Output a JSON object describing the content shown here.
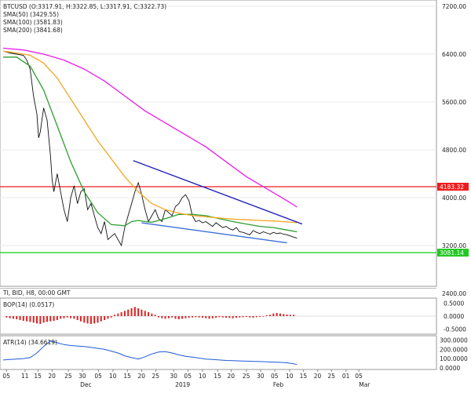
{
  "legend": {
    "ohlc": "BTCUSD (O:3317.91, H:3322.85, L:3317.91, C:3322.73)",
    "sma50": "SMA(50) (3429.55)",
    "sma100": "SMA(100) (3581.83)",
    "sma200": "SMA(200) (3841.68)"
  },
  "footer_label": "TI, BID, H8, 00:00 GMT",
  "colors": {
    "sma50": "#2e9e2e",
    "sma100": "#f5a623",
    "sma200": "#e81ee8",
    "resistance": "#ee1c1c",
    "support": "#22d622",
    "trend_upper": "#2222bb",
    "trend_lower": "#3a6fd8",
    "price": "#111111",
    "bop": "#e02020",
    "atr": "#1e5ad8",
    "label_red_bg": "#ee1c1c",
    "label_green_bg": "#22c822"
  },
  "chart_data": [
    {
      "type": "line",
      "name": "price-panel",
      "ylim": [
        2400,
        7200
      ],
      "yticks": [
        "7200.00",
        "6400.00",
        "5600.00",
        "4800.00",
        "4000.00",
        "3200.00",
        "2400.00"
      ],
      "ytick_values": [
        7200,
        6400,
        5600,
        4800,
        4000,
        3200,
        2400
      ],
      "price_labels": [
        {
          "text": "4183.32",
          "value": 4183.32,
          "color": "#ee1c1c"
        },
        {
          "text": "3081.14",
          "value": 3081.14,
          "color": "#22c822"
        }
      ],
      "xlim": [
        0,
        100
      ],
      "x_ticks": [
        {
          "label": "05",
          "x": 1
        },
        {
          "label": "11",
          "x": 6.5
        },
        {
          "label": "15",
          "x": 10.3
        },
        {
          "label": "20",
          "x": 14.5
        },
        {
          "label": "25",
          "x": 19.3
        },
        {
          "label": "30",
          "x": 23.5
        },
        {
          "label": "05",
          "x": 28.2
        },
        {
          "label": "10",
          "x": 32.5
        },
        {
          "label": "15",
          "x": 36.8
        },
        {
          "label": "20",
          "x": 41
        },
        {
          "label": "25",
          "x": 45.2
        },
        {
          "label": "30",
          "x": 50.5
        },
        {
          "label": "05",
          "x": 54.7
        },
        {
          "label": "10",
          "x": 59
        },
        {
          "label": "15",
          "x": 63.5
        },
        {
          "label": "20",
          "x": 67.5
        },
        {
          "label": "25",
          "x": 72
        },
        {
          "label": "30",
          "x": 76.2
        },
        {
          "label": "05",
          "x": 80.4
        },
        {
          "label": "10",
          "x": 84.8
        },
        {
          "label": "15",
          "x": 88.9
        },
        {
          "label": "20",
          "x": 93.1
        },
        {
          "label": "25",
          "x": 97.2
        },
        {
          "label": "01",
          "x": 101.5
        },
        {
          "label": "05",
          "x": 105.3
        }
      ],
      "month_labels": [
        {
          "label": "Dec",
          "x": 24.2
        },
        {
          "label": "2019",
          "x": 52.3
        },
        {
          "label": "Feb",
          "x": 81.3
        },
        {
          "label": "Mar",
          "x": 106.7
        }
      ],
      "series": [
        {
          "key": "price",
          "x": [
            0,
            2,
            4,
            6,
            7,
            8,
            9,
            10,
            10.5,
            11,
            12,
            13,
            14,
            14.5,
            15,
            16,
            17,
            18,
            19,
            20,
            21,
            22,
            23,
            24,
            25,
            26,
            27,
            28,
            29,
            30,
            31,
            32,
            33,
            34,
            35,
            36,
            37,
            38,
            39,
            40,
            41,
            42,
            43,
            44,
            45,
            46,
            47,
            48,
            49,
            50,
            51,
            52,
            53,
            54,
            55,
            56,
            57,
            58,
            59,
            60,
            61,
            62,
            63,
            64,
            65,
            66,
            67,
            68,
            69,
            70,
            71,
            72,
            73,
            74,
            75,
            76,
            77,
            78,
            79,
            80,
            81,
            82,
            83,
            84,
            85,
            86,
            87
          ],
          "y": [
            6450,
            6420,
            6400,
            6380,
            6300,
            6150,
            5700,
            5400,
            5000,
            5100,
            5500,
            5300,
            4700,
            4300,
            4100,
            4400,
            4100,
            3800,
            3600,
            4000,
            4200,
            3900,
            4100,
            4150,
            3800,
            3900,
            3700,
            3500,
            3400,
            3600,
            3300,
            3350,
            3400,
            3300,
            3200,
            3500,
            3700,
            3900,
            4100,
            4250,
            4050,
            3800,
            3600,
            3700,
            3800,
            3650,
            3600,
            3800,
            3750,
            3700,
            3850,
            3900,
            4000,
            4050,
            3950,
            3700,
            3600,
            3620,
            3580,
            3600,
            3560,
            3520,
            3580,
            3540,
            3500,
            3520,
            3480,
            3460,
            3500,
            3430,
            3420,
            3400,
            3380,
            3450,
            3420,
            3400,
            3430,
            3410,
            3390,
            3420,
            3400,
            3410,
            3390,
            3380,
            3360,
            3340,
            3323
          ]
        },
        {
          "key": "sma50",
          "x": [
            0,
            4,
            8,
            12,
            16,
            20,
            24,
            28,
            32,
            36,
            38,
            40,
            42,
            44,
            48,
            52,
            56,
            60,
            64,
            68,
            72,
            76,
            80,
            84,
            87
          ],
          "y": [
            6350,
            6350,
            6200,
            5800,
            5200,
            4600,
            4100,
            3750,
            3550,
            3530,
            3600,
            3620,
            3600,
            3590,
            3650,
            3720,
            3720,
            3700,
            3650,
            3600,
            3560,
            3520,
            3500,
            3460,
            3430
          ]
        },
        {
          "key": "sma100",
          "x": [
            0,
            4,
            8,
            12,
            16,
            20,
            24,
            28,
            32,
            36,
            40,
            44,
            48,
            52,
            56,
            60,
            64,
            68,
            72,
            76,
            80,
            84,
            87
          ],
          "y": [
            6450,
            6420,
            6380,
            6250,
            6000,
            5650,
            5300,
            4950,
            4650,
            4350,
            4100,
            3900,
            3800,
            3740,
            3700,
            3680,
            3660,
            3640,
            3630,
            3620,
            3610,
            3595,
            3582
          ]
        },
        {
          "key": "sma200",
          "x": [
            0,
            6,
            12,
            18,
            24,
            30,
            36,
            42,
            48,
            54,
            60,
            66,
            72,
            78,
            84,
            87
          ],
          "y": [
            6500,
            6470,
            6400,
            6300,
            6150,
            5950,
            5700,
            5450,
            5250,
            5050,
            4850,
            4600,
            4350,
            4150,
            3950,
            3842
          ]
        }
      ],
      "horizontal_lines": [
        {
          "key": "resistance",
          "value": 4183.32
        },
        {
          "key": "support",
          "value": 3081.14
        }
      ],
      "trendlines": [
        {
          "key": "trend_upper",
          "x": [
            38.5,
            88.5
          ],
          "y": [
            4620,
            3560
          ]
        },
        {
          "key": "trend_lower",
          "x": [
            41,
            84
          ],
          "y": [
            3580,
            3245
          ]
        }
      ]
    },
    {
      "type": "bar",
      "name": "bop-panel",
      "title": "BOP(14) (0.0517)",
      "ylim": [
        -0.6,
        0.6
      ],
      "yticks": [
        "0.5000",
        "0.0000",
        "-0.5000"
      ],
      "ytick_values": [
        0.5,
        0.0,
        -0.5
      ],
      "x": [
        1,
        2,
        3,
        4,
        5,
        6,
        7,
        8,
        9,
        10,
        11,
        12,
        13,
        14,
        15,
        16,
        17,
        18,
        19,
        20,
        21,
        22,
        23,
        24,
        25,
        26,
        27,
        28,
        29,
        30,
        31,
        32,
        33,
        34,
        35,
        36,
        37,
        38,
        39,
        40,
        41,
        42,
        43,
        44,
        45,
        46,
        47,
        48,
        49,
        50,
        51,
        52,
        53,
        54,
        55,
        56,
        57,
        58,
        59,
        60,
        61,
        62,
        63,
        64,
        65,
        66,
        67,
        68,
        69,
        70,
        71,
        72,
        73,
        74,
        75,
        76,
        77,
        78,
        79,
        80,
        81,
        82,
        83,
        84,
        85,
        86
      ],
      "values": [
        -0.05,
        -0.08,
        -0.1,
        -0.12,
        -0.15,
        -0.18,
        -0.2,
        -0.22,
        -0.25,
        -0.28,
        -0.3,
        -0.25,
        -0.22,
        -0.2,
        -0.18,
        -0.15,
        -0.1,
        -0.08,
        -0.05,
        -0.08,
        -0.1,
        -0.15,
        -0.2,
        -0.25,
        -0.28,
        -0.3,
        -0.28,
        -0.25,
        -0.2,
        -0.15,
        -0.1,
        -0.05,
        0.05,
        0.1,
        0.15,
        0.2,
        0.25,
        0.3,
        0.35,
        0.3,
        0.25,
        0.2,
        0.15,
        0.1,
        0.05,
        -0.05,
        -0.08,
        -0.1,
        -0.08,
        -0.05,
        -0.1,
        -0.12,
        -0.1,
        -0.08,
        -0.06,
        -0.05,
        -0.04,
        -0.05,
        -0.06,
        -0.08,
        -0.1,
        -0.08,
        -0.06,
        -0.04,
        -0.05,
        -0.06,
        -0.07,
        -0.08,
        -0.06,
        -0.05,
        -0.04,
        -0.03,
        -0.05,
        -0.06,
        -0.04,
        -0.03,
        -0.02,
        0.03,
        0.05,
        0.1,
        0.12,
        0.1,
        0.08,
        0.06,
        0.05,
        0.05
      ]
    },
    {
      "type": "line",
      "name": "atr-panel",
      "title": "ATR(14) (34.6619)",
      "ylim": [
        0,
        320
      ],
      "yticks": [
        "300.0000",
        "200.0000",
        "100.0000",
        "0.0000"
      ],
      "ytick_values": [
        300,
        200,
        100,
        0
      ],
      "x": [
        0,
        2,
        4,
        6,
        8,
        10,
        12,
        14,
        16,
        18,
        20,
        22,
        24,
        26,
        28,
        30,
        32,
        34,
        36,
        38,
        40,
        42,
        44,
        46,
        48,
        50,
        52,
        54,
        56,
        58,
        60,
        62,
        64,
        66,
        68,
        70,
        72,
        74,
        76,
        78,
        80,
        82,
        84,
        86,
        87
      ],
      "y": [
        85,
        90,
        95,
        100,
        110,
        160,
        230,
        290,
        270,
        250,
        240,
        235,
        230,
        220,
        210,
        200,
        180,
        160,
        130,
        110,
        95,
        120,
        150,
        170,
        175,
        160,
        140,
        125,
        115,
        105,
        95,
        90,
        85,
        80,
        78,
        75,
        72,
        70,
        68,
        66,
        62,
        60,
        55,
        45,
        35
      ]
    }
  ]
}
